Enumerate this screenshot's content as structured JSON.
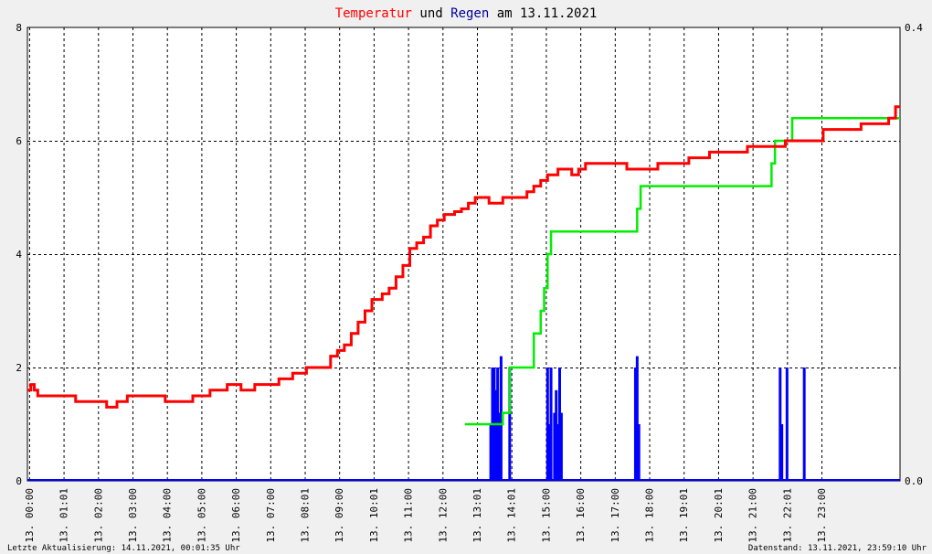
{
  "chart_data": {
    "type": "line",
    "title": {
      "part1": "Temperatur",
      "part2": " und ",
      "part3": "Regen",
      "part4": " am 13.11.2021",
      "color1": "#ff0000",
      "color2": "#000000",
      "color3": "#000099",
      "color4": "#000000"
    },
    "x_unit": "hours",
    "x_range": [
      0,
      25.33
    ],
    "x_tick_labels": [
      {
        "x": 0.05,
        "label": "13. 00:00"
      },
      {
        "x": 1.05,
        "label": "13. 01:01"
      },
      {
        "x": 2.05,
        "label": "13. 02:00"
      },
      {
        "x": 3.05,
        "label": "13. 03:00"
      },
      {
        "x": 4.05,
        "label": "13. 04:00"
      },
      {
        "x": 5.05,
        "label": "13. 05:00"
      },
      {
        "x": 6.05,
        "label": "13. 06:00"
      },
      {
        "x": 7.05,
        "label": "13. 07:00"
      },
      {
        "x": 8.05,
        "label": "13. 08:01"
      },
      {
        "x": 9.05,
        "label": "13. 09:00"
      },
      {
        "x": 10.05,
        "label": "13. 10:01"
      },
      {
        "x": 11.05,
        "label": "13. 11:00"
      },
      {
        "x": 12.05,
        "label": "13. 12:00"
      },
      {
        "x": 13.05,
        "label": "13. 13:01"
      },
      {
        "x": 14.05,
        "label": "13. 14:01"
      },
      {
        "x": 15.05,
        "label": "13. 15:00"
      },
      {
        "x": 16.05,
        "label": "13. 16:00"
      },
      {
        "x": 17.05,
        "label": "13. 17:00"
      },
      {
        "x": 18.05,
        "label": "13. 18:00"
      },
      {
        "x": 19.05,
        "label": "13. 19:01"
      },
      {
        "x": 20.05,
        "label": "13. 20:01"
      },
      {
        "x": 21.05,
        "label": "13. 21:00"
      },
      {
        "x": 22.05,
        "label": "13. 22:01"
      },
      {
        "x": 23.05,
        "label": "13. 23:00"
      }
    ],
    "y_left": {
      "range": [
        0,
        8
      ],
      "ticks": [
        0,
        2,
        4,
        6,
        8
      ]
    },
    "y_right": {
      "range": [
        0,
        0.4
      ],
      "ticks": [
        0,
        0.4
      ],
      "tick_labels": [
        "0.0",
        "0.4"
      ]
    },
    "grid": true,
    "series": [
      {
        "color": "#ff0000",
        "axis": "left",
        "style": "step",
        "points": [
          [
            0,
            1.6
          ],
          [
            0.1,
            1.7
          ],
          [
            0.2,
            1.6
          ],
          [
            0.3,
            1.5
          ],
          [
            1.3,
            1.5
          ],
          [
            1.4,
            1.4
          ],
          [
            2.2,
            1.4
          ],
          [
            2.3,
            1.3
          ],
          [
            2.6,
            1.4
          ],
          [
            2.8,
            1.4
          ],
          [
            2.9,
            1.5
          ],
          [
            3.9,
            1.5
          ],
          [
            4.0,
            1.4
          ],
          [
            4.7,
            1.4
          ],
          [
            4.8,
            1.5
          ],
          [
            5.2,
            1.5
          ],
          [
            5.3,
            1.6
          ],
          [
            5.7,
            1.6
          ],
          [
            5.8,
            1.7
          ],
          [
            6.1,
            1.7
          ],
          [
            6.2,
            1.6
          ],
          [
            6.5,
            1.6
          ],
          [
            6.6,
            1.7
          ],
          [
            7.2,
            1.7
          ],
          [
            7.3,
            1.8
          ],
          [
            7.6,
            1.8
          ],
          [
            7.7,
            1.9
          ],
          [
            8.0,
            1.9
          ],
          [
            8.1,
            2.0
          ],
          [
            8.6,
            2.0
          ],
          [
            8.8,
            2.2
          ],
          [
            9.0,
            2.3
          ],
          [
            9.2,
            2.4
          ],
          [
            9.4,
            2.6
          ],
          [
            9.6,
            2.8
          ],
          [
            9.8,
            3.0
          ],
          [
            10.0,
            3.2
          ],
          [
            10.3,
            3.3
          ],
          [
            10.5,
            3.4
          ],
          [
            10.7,
            3.6
          ],
          [
            10.9,
            3.8
          ],
          [
            11.1,
            4.1
          ],
          [
            11.3,
            4.2
          ],
          [
            11.5,
            4.3
          ],
          [
            11.7,
            4.5
          ],
          [
            11.9,
            4.6
          ],
          [
            12.1,
            4.7
          ],
          [
            12.4,
            4.75
          ],
          [
            12.6,
            4.8
          ],
          [
            12.8,
            4.9
          ],
          [
            13.0,
            5.0
          ],
          [
            13.4,
            4.9
          ],
          [
            13.7,
            4.9
          ],
          [
            13.8,
            5.0
          ],
          [
            14.3,
            5.0
          ],
          [
            14.5,
            5.1
          ],
          [
            14.7,
            5.2
          ],
          [
            14.9,
            5.3
          ],
          [
            15.1,
            5.4
          ],
          [
            15.4,
            5.5
          ],
          [
            15.8,
            5.4
          ],
          [
            16.0,
            5.5
          ],
          [
            16.2,
            5.6
          ],
          [
            17.3,
            5.6
          ],
          [
            17.4,
            5.5
          ],
          [
            18.0,
            5.5
          ],
          [
            18.3,
            5.6
          ],
          [
            19.0,
            5.6
          ],
          [
            19.2,
            5.7
          ],
          [
            19.6,
            5.7
          ],
          [
            19.8,
            5.8
          ],
          [
            20.6,
            5.8
          ],
          [
            20.9,
            5.9
          ],
          [
            21.8,
            5.9
          ],
          [
            22.0,
            6.0
          ],
          [
            23.0,
            6.0
          ],
          [
            23.1,
            6.2
          ],
          [
            24.0,
            6.2
          ],
          [
            24.2,
            6.3
          ],
          [
            25.0,
            6.4
          ],
          [
            25.2,
            6.6
          ],
          [
            25.33,
            6.6
          ]
        ]
      },
      {
        "color": "#00ee00",
        "axis": "right",
        "style": "step",
        "points": [
          [
            12.7,
            0.05
          ],
          [
            13.2,
            0.05
          ],
          [
            13.8,
            0.06
          ],
          [
            14.0,
            0.1
          ],
          [
            14.6,
            0.1
          ],
          [
            14.7,
            0.13
          ],
          [
            14.9,
            0.15
          ],
          [
            15.0,
            0.17
          ],
          [
            15.1,
            0.2
          ],
          [
            15.2,
            0.22
          ],
          [
            17.6,
            0.22
          ],
          [
            17.7,
            0.24
          ],
          [
            17.8,
            0.26
          ],
          [
            21.5,
            0.26
          ],
          [
            21.6,
            0.28
          ],
          [
            21.7,
            0.3
          ],
          [
            22.1,
            0.3
          ],
          [
            22.2,
            0.32
          ],
          [
            25.33,
            0.32
          ]
        ]
      },
      {
        "color": "#0000ff",
        "axis": "right",
        "style": "bars",
        "points": [
          [
            13.45,
            0.05
          ],
          [
            13.5,
            0.1
          ],
          [
            13.55,
            0.1
          ],
          [
            13.6,
            0.08
          ],
          [
            13.65,
            0.1
          ],
          [
            13.7,
            0.06
          ],
          [
            13.75,
            0.11
          ],
          [
            14.0,
            0.1
          ],
          [
            15.1,
            0.1
          ],
          [
            15.15,
            0.05
          ],
          [
            15.2,
            0.1
          ],
          [
            15.3,
            0.06
          ],
          [
            15.35,
            0.08
          ],
          [
            15.4,
            0.05
          ],
          [
            15.45,
            0.1
          ],
          [
            15.5,
            0.06
          ],
          [
            17.65,
            0.1
          ],
          [
            17.7,
            0.11
          ],
          [
            17.75,
            0.05
          ],
          [
            21.85,
            0.1
          ],
          [
            21.9,
            0.05
          ],
          [
            22.05,
            0.1
          ],
          [
            22.55,
            0.1
          ]
        ]
      }
    ]
  },
  "footer": {
    "left": "Letzte Aktualisierung: 14.11.2021, 00:01:35 Uhr",
    "right": "Datenstand: 13.11.2021, 23:59:10 Uhr"
  }
}
